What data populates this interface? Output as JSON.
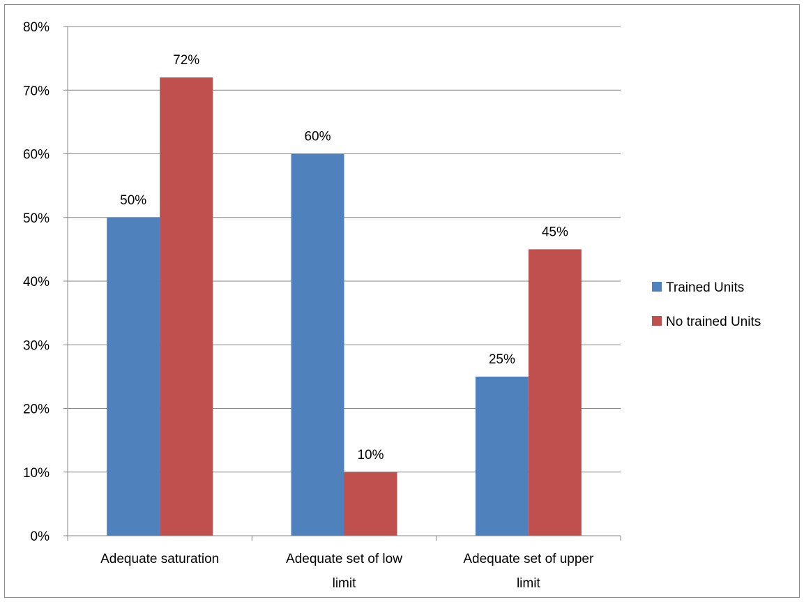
{
  "chart_data": {
    "type": "bar",
    "categories": [
      [
        "Adequate saturation"
      ],
      [
        "Adequate set of low",
        "limit"
      ],
      [
        "Adequate set of upper",
        "limit"
      ]
    ],
    "series": [
      {
        "name": "Trained Units",
        "values": [
          50,
          60,
          25
        ],
        "labels": [
          "50%",
          "60%",
          "25%"
        ],
        "color": "#4f81bd"
      },
      {
        "name": "No trained Units",
        "values": [
          72,
          10,
          45
        ],
        "labels": [
          "72%",
          "10%",
          "45%"
        ],
        "color": "#c0504d"
      }
    ],
    "ylim": [
      0,
      80
    ],
    "yticks": [
      "0%",
      "10%",
      "20%",
      "30%",
      "40%",
      "50%",
      "60%",
      "70%",
      "80%"
    ],
    "grid": true,
    "legend_position": "right",
    "title": "",
    "xlabel": "",
    "ylabel": ""
  }
}
